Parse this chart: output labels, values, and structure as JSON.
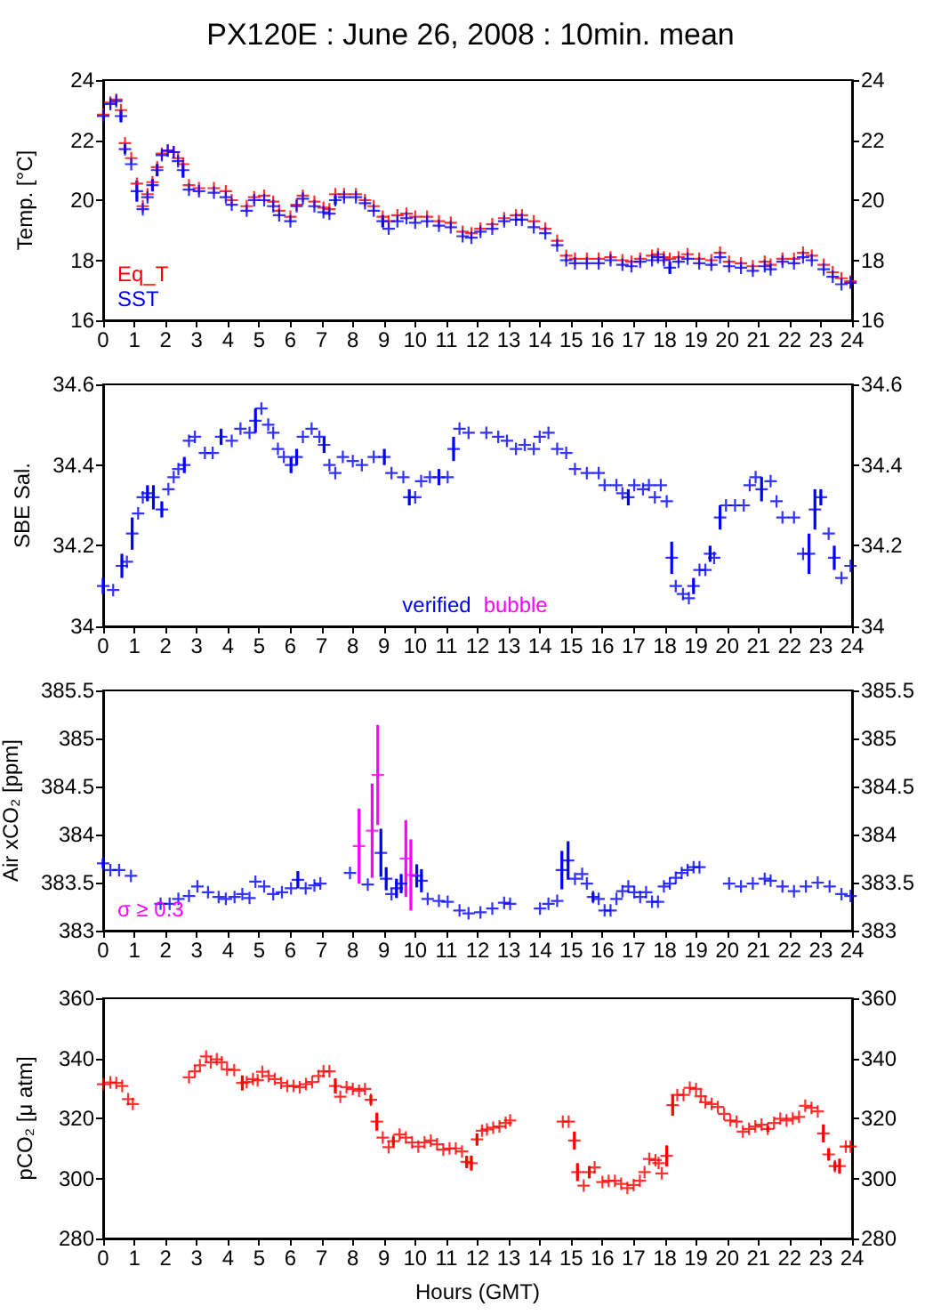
{
  "chart_data": [
    {
      "type": "scatter",
      "title": "PX120E : June 26, 2008 : 10min. mean",
      "ylabel": "Temp. [°C]",
      "marker": "cross",
      "legend": "bottom left",
      "grid": false,
      "xlim": [
        0,
        24
      ],
      "xticks": [
        0,
        1,
        2,
        3,
        4,
        5,
        6,
        7,
        8,
        9,
        10,
        11,
        12,
        13,
        14,
        15,
        16,
        17,
        18,
        19,
        20,
        21,
        22,
        23,
        24
      ],
      "ylim": [
        16,
        24
      ],
      "yticks": [
        16,
        18,
        20,
        22,
        24
      ],
      "y2lim": [
        16,
        24
      ],
      "y2ticks": [
        16,
        18,
        20,
        22,
        24
      ],
      "x": [
        0,
        0.23,
        0.42,
        0.57,
        0.7,
        0.9,
        1.08,
        1.27,
        1.42,
        1.58,
        1.73,
        1.88,
        2.07,
        2.26,
        2.4,
        2.56,
        2.75,
        3.07,
        3.55,
        3.93,
        4.12,
        4.6,
        4.84,
        5.16,
        5.45,
        5.64,
        6.0,
        6.2,
        6.4,
        6.77,
        7.06,
        7.25,
        7.44,
        7.72,
        8.1,
        8.39,
        8.67,
        8.96,
        9.15,
        9.43,
        9.72,
        10.0,
        10.38,
        10.76,
        11.14,
        11.52,
        11.8,
        12.09,
        12.47,
        12.85,
        13.23,
        13.42,
        13.8,
        14.17,
        14.55,
        14.84,
        15.12,
        15.5,
        15.88,
        16.26,
        16.64,
        16.93,
        17.21,
        17.59,
        17.78,
        17.97,
        18.16,
        18.44,
        18.73,
        19.1,
        19.49,
        19.77,
        20.06,
        20.44,
        20.82,
        21.2,
        21.39,
        21.77,
        22.14,
        22.43,
        22.71,
        23.09,
        23.38,
        23.66,
        23.95
      ],
      "series": [
        {
          "name": "Eq_T",
          "color": "#ff0000",
          "values": [
            22.85,
            23.25,
            23.35,
            23.0,
            21.9,
            21.4,
            20.55,
            19.8,
            20.2,
            20.6,
            21.1,
            21.55,
            21.65,
            21.6,
            21.4,
            21.2,
            20.5,
            20.4,
            20.4,
            20.3,
            20.0,
            19.8,
            20.1,
            20.15,
            19.95,
            19.65,
            19.45,
            19.85,
            20.15,
            19.95,
            19.75,
            19.7,
            20.2,
            20.2,
            20.2,
            20.0,
            19.8,
            19.45,
            19.3,
            19.5,
            19.55,
            19.45,
            19.45,
            19.3,
            19.25,
            18.95,
            18.9,
            19.05,
            19.2,
            19.4,
            19.5,
            19.5,
            19.3,
            19.05,
            18.65,
            18.15,
            18.05,
            18.05,
            18.05,
            18.1,
            18.0,
            17.95,
            18.05,
            18.15,
            18.2,
            18.1,
            18.05,
            18.1,
            18.2,
            18.05,
            18.0,
            18.25,
            17.95,
            17.9,
            17.8,
            17.95,
            17.85,
            18.05,
            18.05,
            18.25,
            18.15,
            17.85,
            17.6,
            17.4,
            17.3
          ]
        },
        {
          "name": "SST",
          "color": "#0000ff",
          "values": [
            22.8,
            23.2,
            23.3,
            22.8,
            21.7,
            21.2,
            20.3,
            19.7,
            20.1,
            20.5,
            21.0,
            21.5,
            21.65,
            21.6,
            21.3,
            21.0,
            20.35,
            20.3,
            20.25,
            20.1,
            19.85,
            19.65,
            20.0,
            20.0,
            19.8,
            19.5,
            19.3,
            19.8,
            20.05,
            19.8,
            19.6,
            19.55,
            20.0,
            20.1,
            20.1,
            19.9,
            19.65,
            19.3,
            19.05,
            19.3,
            19.4,
            19.25,
            19.3,
            19.15,
            19.1,
            18.8,
            18.75,
            18.95,
            19.05,
            19.3,
            19.35,
            19.35,
            19.1,
            18.9,
            18.5,
            18.0,
            17.9,
            17.9,
            17.9,
            18.0,
            17.85,
            17.8,
            17.95,
            18.0,
            18.1,
            18.0,
            17.75,
            17.95,
            18.05,
            17.9,
            17.85,
            18.1,
            17.8,
            17.75,
            17.65,
            17.8,
            17.7,
            17.95,
            17.9,
            18.1,
            18.0,
            17.7,
            17.45,
            17.2,
            17.25
          ],
          "errors": [
            null,
            null,
            null,
            0.2,
            0.15,
            null,
            0.35,
            null,
            null,
            0.2,
            0.2,
            null,
            null,
            null,
            null,
            0.25,
            null,
            null,
            null,
            null,
            null,
            null,
            null,
            null,
            null,
            null,
            null,
            null,
            null,
            null,
            null,
            null,
            0.15,
            null,
            null,
            null,
            null,
            0.2,
            null,
            null,
            null,
            null,
            null,
            null,
            null,
            null,
            null,
            null,
            null,
            null,
            null,
            null,
            null,
            null,
            null,
            null,
            null,
            null,
            null,
            null,
            null,
            null,
            null,
            null,
            null,
            null,
            0.2,
            null,
            null,
            null,
            null,
            null,
            null,
            null,
            null,
            null,
            null,
            null,
            null,
            null,
            null,
            null,
            null,
            null,
            null
          ]
        }
      ]
    },
    {
      "type": "scatter",
      "ylabel": "SBE Sal.",
      "marker": "cross",
      "legend": "bottom",
      "grid": false,
      "xlim": [
        0,
        24
      ],
      "xticks": [
        0,
        1,
        2,
        3,
        4,
        5,
        6,
        7,
        8,
        9,
        10,
        11,
        12,
        13,
        14,
        15,
        16,
        17,
        18,
        19,
        20,
        21,
        22,
        23,
        24
      ],
      "ylim": [
        34,
        34.6
      ],
      "yticks": [
        34,
        34.2,
        34.4,
        34.6
      ],
      "y2lim": [
        34,
        34.6
      ],
      "y2ticks": [
        34,
        34.2,
        34.4,
        34.6
      ],
      "series": [
        {
          "name": "verified",
          "color": "#0000ff",
          "x": [
            0,
            0.32,
            0.6,
            0.76,
            0.93,
            1.12,
            1.27,
            1.42,
            1.61,
            1.88,
            2.09,
            2.26,
            2.41,
            2.6,
            2.75,
            2.94,
            3.26,
            3.51,
            3.78,
            4.12,
            4.4,
            4.69,
            4.88,
            5.07,
            5.29,
            5.45,
            5.6,
            5.79,
            6.02,
            6.2,
            6.4,
            6.68,
            6.93,
            7.08,
            7.25,
            7.44,
            7.68,
            8.0,
            8.29,
            8.67,
            9.01,
            9.24,
            9.62,
            9.81,
            10.0,
            10.19,
            10.47,
            10.76,
            11.04,
            11.23,
            11.42,
            11.71,
            12.28,
            12.66,
            12.94,
            13.23,
            13.51,
            13.8,
            13.99,
            14.27,
            14.55,
            14.84,
            15.12,
            15.5,
            15.88,
            16.07,
            16.45,
            16.64,
            16.83,
            17.02,
            17.3,
            17.49,
            17.68,
            17.87,
            18.06,
            18.22,
            18.35,
            18.58,
            18.77,
            18.92,
            19.11,
            19.3,
            19.45,
            19.58,
            19.77,
            19.96,
            20.25,
            20.53,
            20.72,
            20.91,
            21.1,
            21.39,
            21.58,
            21.77,
            22.14,
            22.43,
            22.62,
            22.81,
            23.0,
            23.25,
            23.43,
            23.66,
            23.95
          ],
          "values": [
            34.1,
            34.09,
            34.15,
            34.16,
            34.23,
            34.28,
            34.32,
            34.33,
            34.32,
            34.29,
            34.34,
            34.37,
            34.39,
            34.4,
            34.46,
            34.47,
            34.43,
            34.43,
            34.47,
            34.46,
            34.49,
            34.48,
            34.51,
            34.54,
            34.5,
            34.48,
            34.44,
            34.42,
            34.4,
            34.42,
            34.47,
            34.49,
            34.47,
            34.45,
            34.4,
            34.38,
            34.42,
            34.41,
            34.4,
            34.42,
            34.42,
            34.38,
            34.37,
            34.32,
            34.32,
            34.36,
            34.37,
            34.37,
            34.37,
            34.44,
            34.49,
            34.48,
            34.48,
            34.47,
            34.46,
            34.44,
            34.45,
            34.44,
            34.47,
            34.48,
            34.44,
            34.43,
            34.39,
            34.38,
            34.38,
            34.35,
            34.35,
            34.33,
            34.32,
            34.35,
            34.34,
            34.35,
            34.32,
            34.35,
            34.31,
            34.17,
            34.1,
            34.08,
            34.07,
            34.1,
            34.14,
            34.14,
            34.18,
            34.17,
            34.27,
            34.3,
            34.3,
            34.3,
            34.35,
            34.37,
            34.34,
            34.36,
            34.31,
            34.27,
            34.27,
            34.18,
            34.18,
            34.29,
            34.32,
            34.23,
            34.17,
            34.12,
            34.15
          ],
          "errors": [
            0.02,
            null,
            0.03,
            null,
            0.04,
            null,
            null,
            0.02,
            0.03,
            0.02,
            null,
            null,
            null,
            0.02,
            null,
            null,
            null,
            null,
            0.02,
            null,
            null,
            null,
            0.03,
            null,
            null,
            null,
            null,
            null,
            0.02,
            0.02,
            null,
            null,
            null,
            0.02,
            null,
            null,
            null,
            null,
            null,
            null,
            0.02,
            null,
            null,
            0.02,
            null,
            null,
            null,
            0.02,
            null,
            0.03,
            null,
            null,
            null,
            null,
            null,
            null,
            null,
            null,
            null,
            null,
            null,
            null,
            null,
            null,
            null,
            null,
            null,
            null,
            0.02,
            null,
            null,
            null,
            null,
            null,
            null,
            0.04,
            null,
            null,
            null,
            0.02,
            null,
            null,
            0.02,
            null,
            0.03,
            null,
            null,
            null,
            null,
            null,
            0.03,
            null,
            null,
            null,
            null,
            null,
            0.05,
            0.05,
            0.02,
            null,
            0.03,
            null,
            null
          ]
        },
        {
          "name": "bubble",
          "color": "#ff00ff"
        }
      ]
    },
    {
      "type": "scatter",
      "ylabel": "Air xCO₂ [ppm]",
      "marker": "cross",
      "legend": "bottom left",
      "grid": false,
      "xlim": [
        0,
        24
      ],
      "xticks": [
        0,
        1,
        2,
        3,
        4,
        5,
        6,
        7,
        8,
        9,
        10,
        11,
        12,
        13,
        14,
        15,
        16,
        17,
        18,
        19,
        20,
        21,
        22,
        23,
        24
      ],
      "ylim": [
        383,
        385.5
      ],
      "yticks": [
        383,
        383.5,
        384,
        384.5,
        385,
        385.5
      ],
      "y2lim": [
        383,
        385.5
      ],
      "y2ticks": [
        383,
        383.5,
        384,
        384.5,
        385,
        385.5
      ],
      "series": [
        {
          "color": "#0000ff",
          "x": [
            0,
            0.23,
            0.51,
            0.89,
            1.84,
            2.13,
            2.41,
            2.75,
            3.02,
            3.36,
            3.7,
            3.93,
            4.21,
            4.46,
            4.69,
            4.88,
            5.16,
            5.45,
            5.73,
            6.02,
            6.24,
            6.49,
            6.77,
            6.96,
            7.91,
            8.48,
            8.9,
            9.07,
            9.24,
            9.4,
            9.55,
            10.05,
            10.2,
            10.4,
            10.76,
            11.04,
            11.42,
            11.71,
            12.09,
            12.47,
            12.85,
            13.04,
            14.0,
            14.27,
            14.55,
            14.7,
            14.9,
            15.12,
            15.35,
            15.5,
            15.7,
            15.88,
            16.07,
            16.26,
            16.45,
            16.64,
            16.83,
            17.02,
            17.21,
            17.4,
            17.59,
            17.78,
            17.97,
            18.16,
            18.35,
            18.54,
            18.73,
            18.92,
            19.11,
            20.06,
            20.44,
            20.82,
            21.2,
            21.39,
            21.77,
            22.14,
            22.52,
            22.9,
            23.28,
            23.66,
            23.95
          ],
          "values": [
            383.7,
            383.63,
            383.63,
            383.57,
            383.28,
            383.28,
            383.33,
            383.36,
            383.46,
            383.4,
            383.35,
            383.33,
            383.35,
            383.38,
            383.34,
            383.51,
            383.46,
            383.38,
            383.4,
            383.44,
            383.53,
            383.44,
            383.47,
            383.49,
            383.6,
            383.48,
            383.81,
            383.54,
            383.38,
            383.44,
            383.49,
            383.57,
            383.52,
            383.33,
            383.31,
            383.3,
            383.21,
            383.18,
            383.19,
            383.23,
            383.29,
            383.28,
            383.23,
            383.28,
            383.31,
            383.63,
            383.73,
            383.54,
            383.59,
            383.49,
            383.35,
            383.33,
            383.21,
            383.21,
            383.33,
            383.41,
            383.46,
            383.4,
            383.35,
            383.4,
            383.3,
            383.3,
            383.46,
            383.49,
            383.55,
            383.6,
            383.63,
            383.66,
            383.66,
            383.49,
            383.46,
            383.49,
            383.54,
            383.52,
            383.46,
            383.41,
            383.46,
            383.5,
            383.46,
            383.38,
            383.36
          ],
          "errors": [
            0.05,
            null,
            null,
            null,
            null,
            null,
            null,
            null,
            null,
            null,
            null,
            null,
            null,
            null,
            null,
            null,
            null,
            null,
            null,
            null,
            0.09,
            null,
            null,
            null,
            null,
            null,
            0.25,
            0.12,
            null,
            0.1,
            0.1,
            0.12,
            0.12,
            null,
            null,
            null,
            null,
            null,
            null,
            null,
            null,
            null,
            null,
            null,
            null,
            0.2,
            0.2,
            null,
            null,
            null,
            0.05,
            null,
            null,
            null,
            null,
            null,
            null,
            null,
            null,
            null,
            null,
            null,
            null,
            null,
            null,
            null,
            null,
            null,
            null,
            null,
            null,
            null,
            null,
            null,
            null,
            null,
            null,
            null,
            null,
            null,
            null
          ]
        },
        {
          "name": "σ ≥ 0.3",
          "color": "#ff00ff",
          "x": [
            8.2,
            8.62,
            8.8,
            9.7,
            9.86
          ],
          "values": [
            383.88,
            384.04,
            384.62,
            383.75,
            383.58
          ],
          "errors": [
            0.39,
            0.49,
            0.52,
            0.4,
            0.37
          ]
        }
      ]
    },
    {
      "type": "scatter",
      "ylabel": "pCO₂ [μ atm]",
      "xlabel": "Hours (GMT)",
      "marker": "cross",
      "grid": false,
      "xlim": [
        0,
        24
      ],
      "xticks": [
        0,
        1,
        2,
        3,
        4,
        5,
        6,
        7,
        8,
        9,
        10,
        11,
        12,
        13,
        14,
        15,
        16,
        17,
        18,
        19,
        20,
        21,
        22,
        23,
        24
      ],
      "ylim": [
        280,
        360
      ],
      "yticks": [
        280,
        300,
        320,
        340,
        360
      ],
      "y2lim": [
        280,
        360
      ],
      "y2ticks": [
        280,
        300,
        320,
        340,
        360
      ],
      "series": [
        {
          "color": "#ff0000",
          "x": [
            0,
            0.23,
            0.42,
            0.61,
            0.8,
            0.95,
            2.75,
            2.94,
            3.1,
            3.3,
            3.45,
            3.64,
            3.8,
            3.97,
            4.2,
            4.46,
            4.6,
            4.8,
            4.95,
            5.1,
            5.3,
            5.5,
            5.7,
            5.9,
            6.1,
            6.3,
            6.5,
            6.7,
            6.9,
            7.06,
            7.25,
            7.44,
            7.6,
            7.8,
            8.0,
            8.2,
            8.39,
            8.58,
            8.77,
            8.96,
            9.15,
            9.3,
            9.5,
            9.7,
            9.9,
            10.1,
            10.3,
            10.5,
            10.7,
            10.9,
            11.1,
            11.3,
            11.5,
            11.65,
            11.8,
            11.98,
            12.14,
            12.3,
            12.5,
            12.7,
            12.9,
            13.04,
            14.73,
            14.92,
            15.1,
            15.2,
            15.4,
            15.58,
            15.75,
            16.0,
            16.2,
            16.4,
            16.6,
            16.8,
            17.0,
            17.2,
            17.35,
            17.5,
            17.7,
            17.8,
            17.9,
            18.06,
            18.25,
            18.4,
            18.6,
            18.8,
            19.0,
            19.15,
            19.3,
            19.5,
            19.7,
            19.9,
            20.1,
            20.3,
            20.5,
            20.7,
            20.9,
            21.1,
            21.3,
            21.5,
            21.7,
            21.9,
            22.1,
            22.3,
            22.5,
            22.7,
            22.9,
            23.08,
            23.25,
            23.45,
            23.6,
            23.8,
            23.95
          ],
          "values": [
            331.4,
            332,
            331.8,
            330.8,
            326.4,
            324.8,
            333.7,
            335.7,
            337.7,
            340.6,
            338.7,
            339.7,
            338.7,
            336.3,
            336.1,
            331.8,
            332.1,
            333.1,
            332.7,
            335.5,
            334.1,
            333.1,
            331.8,
            330.8,
            330.8,
            330.4,
            331.4,
            332.1,
            334.1,
            335.7,
            335.7,
            330.8,
            327.2,
            330.4,
            329.8,
            329.2,
            329.8,
            326.2,
            318.9,
            313.6,
            310.4,
            312.4,
            314.6,
            313.6,
            312,
            310.6,
            312,
            312.6,
            311.4,
            309.6,
            310,
            310,
            309,
            305.5,
            305.1,
            313,
            315.9,
            316.3,
            316.9,
            317.3,
            318.5,
            319.3,
            318.9,
            318.9,
            312.6,
            302.1,
            297.6,
            302.1,
            303.7,
            298.8,
            299.2,
            299.2,
            298.2,
            296.8,
            297.8,
            299.2,
            302.1,
            306.5,
            306.1,
            305.1,
            301.7,
            307.5,
            324.4,
            327.8,
            327.8,
            330.2,
            329.8,
            327.4,
            325.4,
            324.8,
            323.8,
            321.5,
            319.3,
            318.9,
            315.6,
            316.5,
            317.3,
            317.9,
            316.5,
            318.5,
            319.9,
            319.3,
            319.9,
            320.5,
            324.2,
            323.5,
            322.3,
            315,
            308,
            304.1,
            304.1,
            310.6,
            310.6
          ],
          "errors": [
            null,
            null,
            null,
            null,
            null,
            null,
            null,
            null,
            null,
            null,
            null,
            null,
            null,
            null,
            null,
            2.5,
            null,
            null,
            null,
            null,
            null,
            null,
            null,
            null,
            null,
            null,
            null,
            null,
            null,
            null,
            null,
            2.5,
            null,
            null,
            null,
            null,
            null,
            1.5,
            3,
            null,
            null,
            1.5,
            null,
            null,
            null,
            null,
            null,
            null,
            null,
            null,
            null,
            null,
            null,
            2,
            2.5,
            2,
            null,
            null,
            null,
            null,
            null,
            null,
            null,
            null,
            3,
            3,
            null,
            2,
            null,
            null,
            null,
            null,
            null,
            null,
            null,
            null,
            null,
            null,
            null,
            null,
            null,
            3.5,
            3.5,
            null,
            null,
            null,
            null,
            null,
            null,
            null,
            null,
            null,
            null,
            null,
            null,
            null,
            null,
            null,
            1,
            null,
            null,
            null,
            null,
            null,
            null,
            null,
            null,
            3,
            2,
            1.5,
            2.5,
            null,
            null
          ]
        }
      ]
    }
  ]
}
